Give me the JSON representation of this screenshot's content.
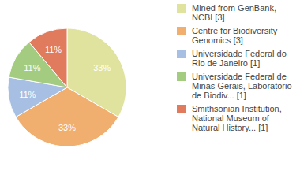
{
  "chart_data": {
    "type": "pie",
    "categories": [
      "Mined from GenBank, NCBI [3]",
      "Centre for Biodiversity Genomics [3]",
      "Universidade Federal do Rio de Janeiro [1]",
      "Universidade Federal de Minas Gerais, Laboratorio de Biodiv... [1]",
      "Smithsonian Institution, National Museum of Natural History... [1]"
    ],
    "values": [
      33,
      33,
      11,
      11,
      11
    ],
    "value_labels": [
      "33%",
      "33%",
      "11%",
      "11%",
      "11%"
    ],
    "colors": [
      "#dfe39d",
      "#f0ae6f",
      "#a7bfe2",
      "#a3cc80",
      "#e07b5e"
    ],
    "data_labels": true,
    "legend": "right"
  }
}
